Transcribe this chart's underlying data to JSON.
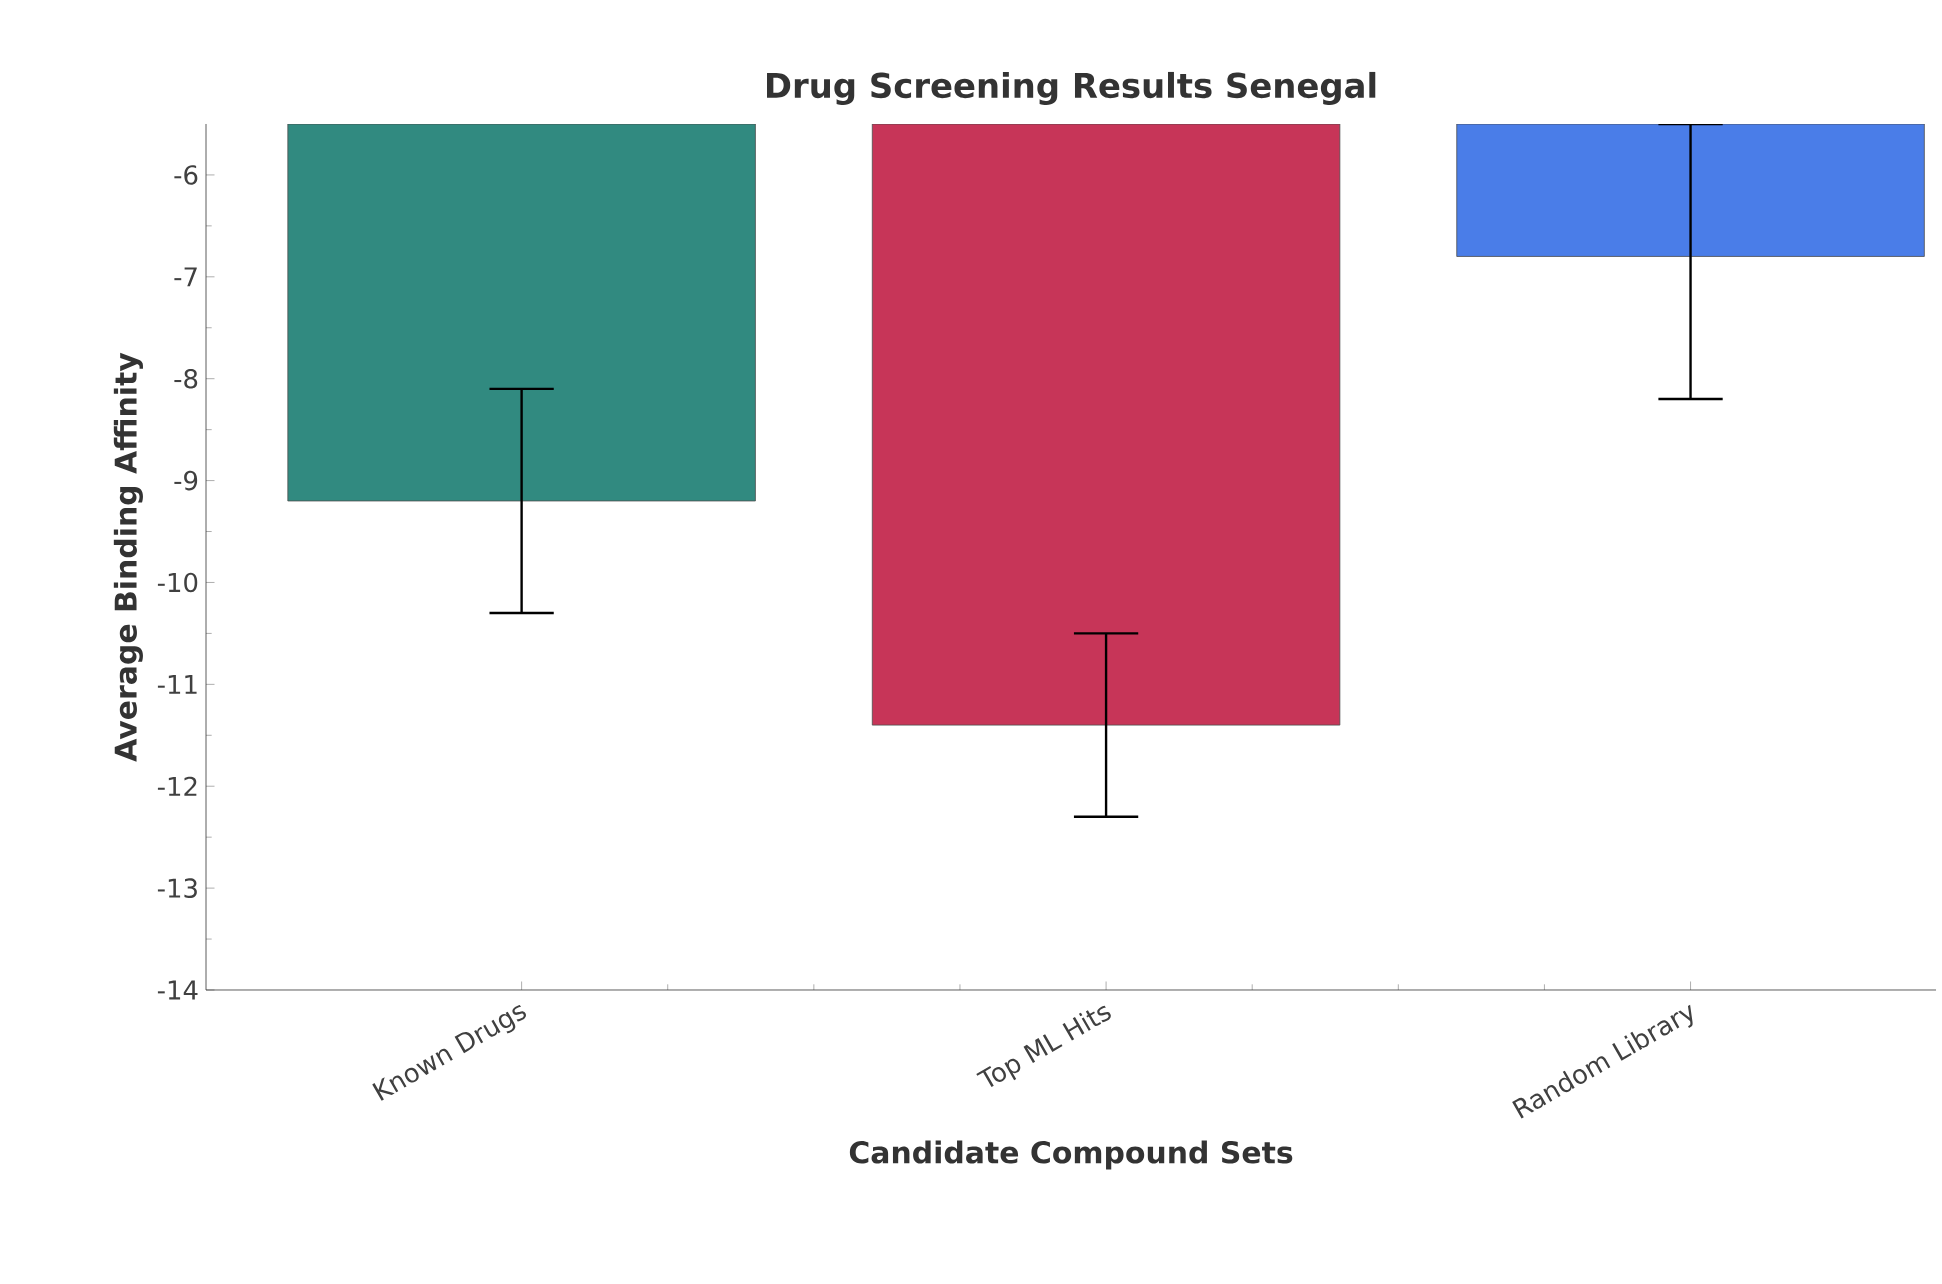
{
  "chart_data": {
    "type": "bar",
    "title": "Drug Screening Results Senegal",
    "xlabel": "Candidate Compound Sets",
    "ylabel": "Average Binding Affinity",
    "categories": [
      "Known Drugs",
      "Top ML Hits",
      "Random Library"
    ],
    "values": [
      -9.2,
      -11.4,
      -6.8
    ],
    "colors": [
      "#318a80",
      "#c73558",
      "#4a7de8"
    ],
    "errors": [
      [
        -10.3,
        -8.1
      ],
      [
        -12.3,
        -10.5
      ],
      [
        -8.2,
        -5.5
      ]
    ],
    "ylim": [
      -14,
      -5.5
    ],
    "yticks": [
      -14,
      -13,
      -12,
      -11,
      -10,
      -9,
      -8,
      -7,
      -6
    ],
    "grid": false
  }
}
